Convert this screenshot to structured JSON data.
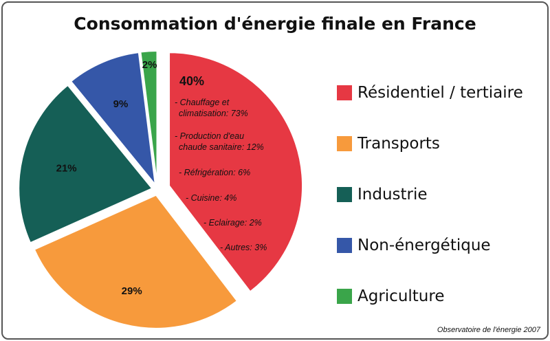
{
  "chart_data": {
    "type": "pie",
    "title": "Consommation d'énergie finale en France",
    "slices": [
      {
        "label": "Résidentiel / tertiaire",
        "value": 40,
        "value_label": "40%",
        "color": "#e63843",
        "exploded": true
      },
      {
        "label": "Transports",
        "value": 29,
        "value_label": "29%",
        "color": "#f79a3c",
        "exploded": false
      },
      {
        "label": "Industrie",
        "value": 21,
        "value_label": "21%",
        "color": "#155f56",
        "exploded": false
      },
      {
        "label": "Non-énergétique",
        "value": 9,
        "value_label": "9%",
        "color": "#3557a8",
        "exploded": false
      },
      {
        "label": "Agriculture",
        "value": 2,
        "value_label": "2%",
        "color": "#3aa54a",
        "exploded": false
      }
    ],
    "annotation_lines": [
      "- Chauffage et",
      "climatisation: 73%",
      "- Production d'eau",
      "chaude sanitaire: 12%",
      "- Réfrigération: 6%",
      "- Cuisine: 4%",
      "- Eclairage: 2%",
      "- Autres: 3%"
    ],
    "legend_position": "right",
    "source": "Observatoire de l'énergie 2007"
  }
}
